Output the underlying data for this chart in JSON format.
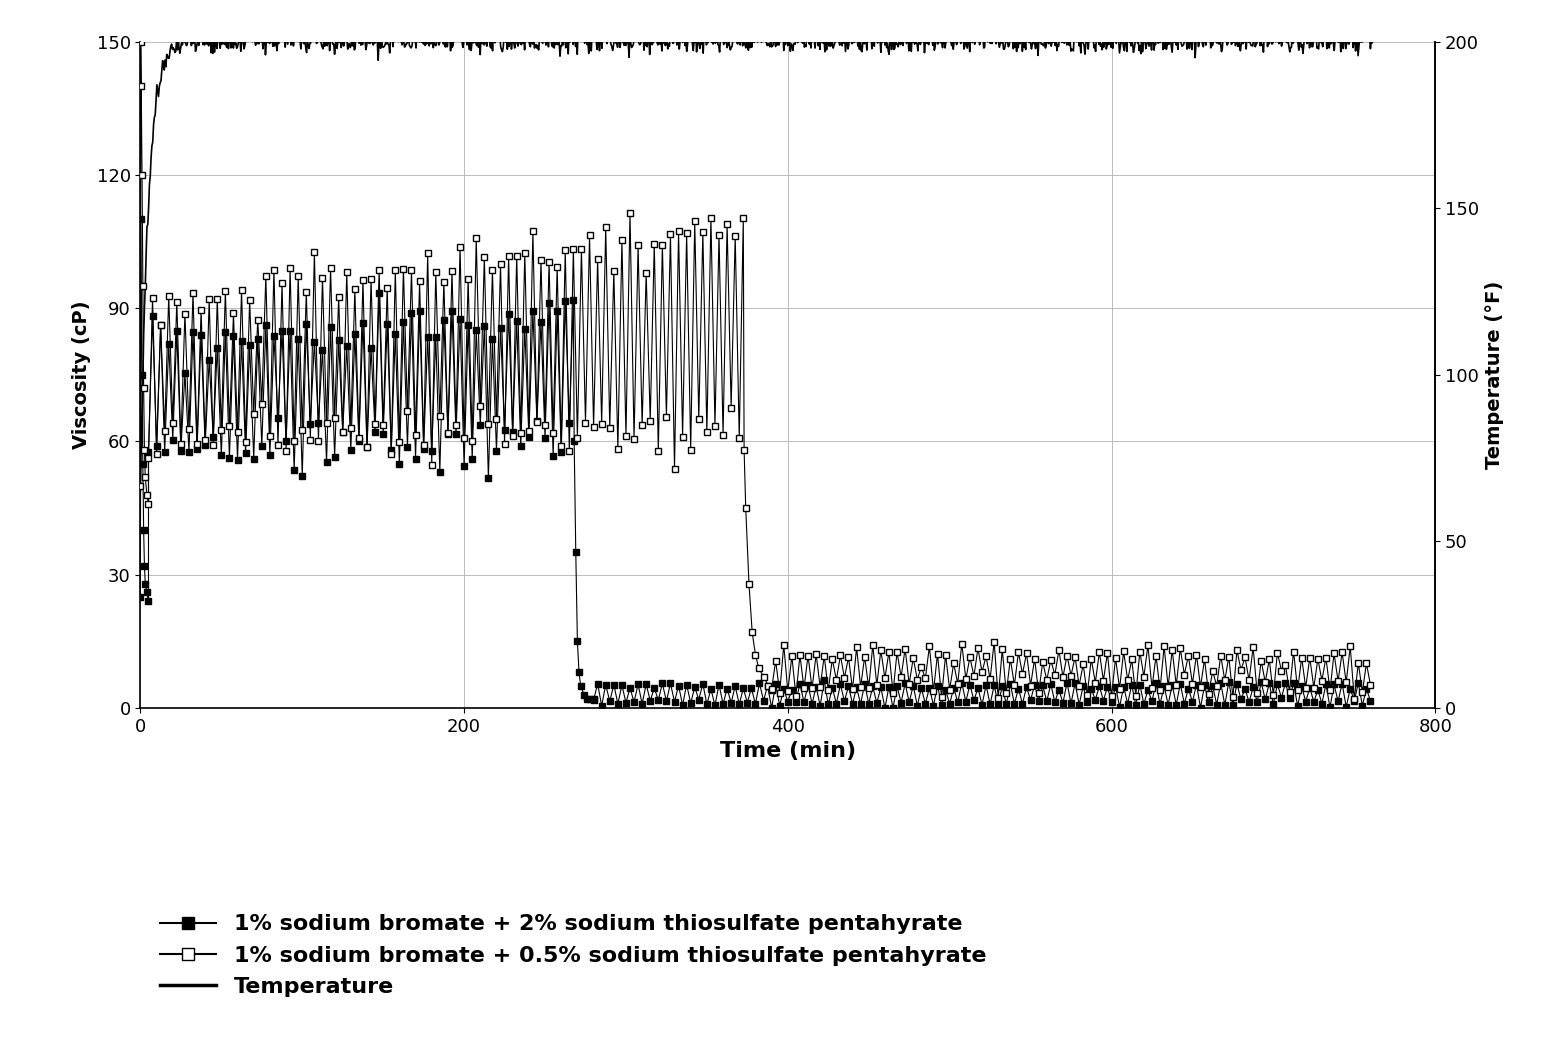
{
  "xlabel": "Time (min)",
  "ylabel_left": "Viscosity (cP)",
  "ylabel_right": "Temperature (°F)",
  "xlim": [
    0,
    800
  ],
  "ylim_left": [
    0,
    150
  ],
  "ylim_right": [
    0,
    200
  ],
  "yticks_left": [
    0,
    30,
    60,
    90,
    120,
    150
  ],
  "yticks_right": [
    0,
    50,
    100,
    150,
    200
  ],
  "xticks": [
    0,
    200,
    400,
    600,
    800
  ],
  "legend1": "1% sodium bromate + 2% sodium thiosulfate pentahyrate",
  "legend2": "1% sodium bromate + 0.5% sodium thiosulfate pentahyrate",
  "legend3": "Temperature",
  "background_color": "#ffffff",
  "grid_color": "#aaaaaa"
}
